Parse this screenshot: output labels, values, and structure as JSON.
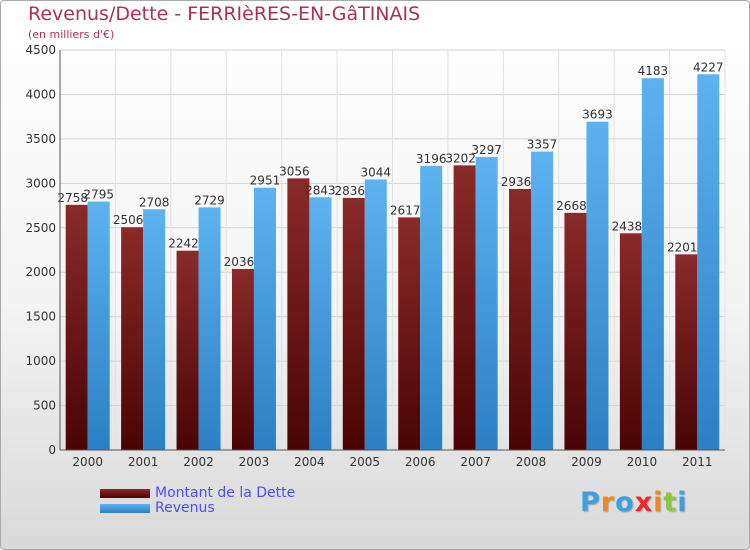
{
  "header": {
    "title": "Revenus/Dette - FERRIèRES-EN-GâTINAIS",
    "subtitle": "(en milliers d'€)"
  },
  "logo": {
    "letters": [
      "P",
      "r",
      "o",
      "x",
      "i",
      "t",
      "i"
    ],
    "colors": [
      "#3aa0e0",
      "#f08a1c",
      "#3aa0e0",
      "#e82b2b",
      "#f08a1c",
      "#8cc63f",
      "#3aa0e0"
    ]
  },
  "chart_data": {
    "type": "bar",
    "categories": [
      "2000",
      "2001",
      "2002",
      "2003",
      "2004",
      "2005",
      "2006",
      "2007",
      "2008",
      "2009",
      "2010",
      "2011"
    ],
    "series": [
      {
        "name": "Montant de la Dette",
        "color": "#7a1f1f",
        "values": [
          2758,
          2506,
          2242,
          2036,
          3056,
          2836,
          2617,
          3202,
          2936,
          2668,
          2438,
          2201
        ],
        "labels": [
          "2758",
          "2506",
          "2242",
          "2036",
          "3056",
          "2836",
          "2617",
          "3202",
          "2936",
          "2668",
          "2438",
          "2201"
        ]
      },
      {
        "name": "Revenus",
        "color": "#4aa3e6",
        "values": [
          2795,
          2708,
          2729,
          2951,
          2843,
          3044,
          3196,
          3297,
          3357,
          3693,
          4183,
          4227
        ],
        "labels": [
          "2795",
          "2708",
          "2729",
          "2951",
          "2843",
          "3044",
          "3196",
          "3297",
          "3357",
          "3693",
          "4183",
          "4227"
        ]
      }
    ],
    "ylim": [
      0,
      4500
    ],
    "yticks": [
      "0",
      "500",
      "1000",
      "1500",
      "2000",
      "2500",
      "3000",
      "3500",
      "4000",
      "4500"
    ],
    "grid": true,
    "legend_position": "bottom-left"
  }
}
